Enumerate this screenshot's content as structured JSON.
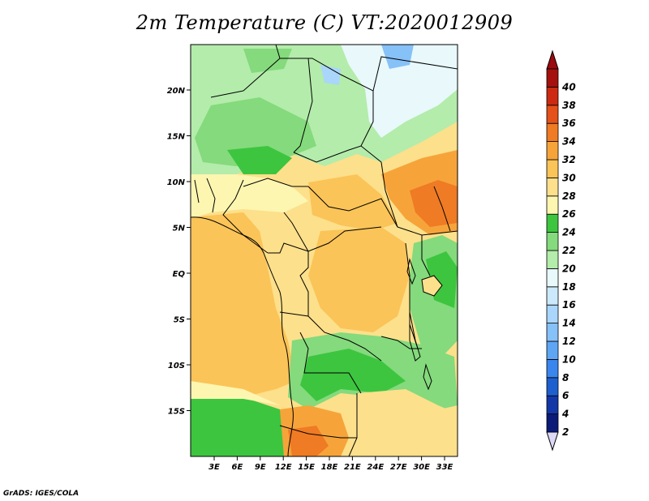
{
  "title": "2m Temperature (C) VT:2020012909",
  "credit": "GrADS: IGES/COLA",
  "map": {
    "lat_ticks": [
      "20N",
      "15N",
      "10N",
      "5N",
      "EQ",
      "5S",
      "10S",
      "15S"
    ],
    "lon_ticks": [
      "3E",
      "6E",
      "9E",
      "12E",
      "15E",
      "18E",
      "21E",
      "24E",
      "27E",
      "30E",
      "33E"
    ]
  },
  "colorbar": {
    "labels": [
      "2",
      "4",
      "6",
      "8",
      "10",
      "12",
      "14",
      "16",
      "18",
      "20",
      "22",
      "24",
      "26",
      "28",
      "30",
      "32",
      "34",
      "36",
      "38",
      "40"
    ],
    "colors": [
      "#0c1a78",
      "#1437a8",
      "#1e5fd0",
      "#3a86ee",
      "#5ea6f4",
      "#86c1f7",
      "#a9d6fa",
      "#cbe9fb",
      "#e8f8fb",
      "#b4ecab",
      "#84da7c",
      "#3dc53f",
      "#fdf6b0",
      "#fde08b",
      "#fbc458",
      "#f6a43a",
      "#ef7b24",
      "#e4511a",
      "#cc2a13",
      "#a5110e"
    ],
    "under_color": "#dcd8f5",
    "over_color": "#9a0a10"
  }
}
